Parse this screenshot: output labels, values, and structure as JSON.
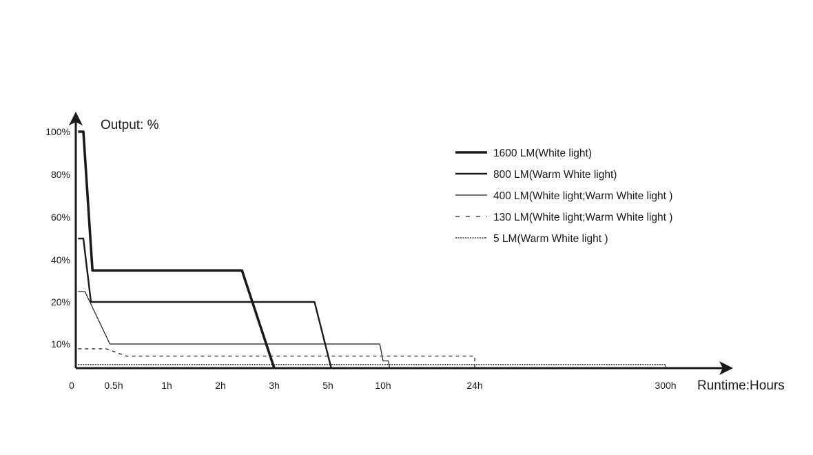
{
  "chart_data": {
    "type": "line",
    "ylabel": "Output: %",
    "xlabel": "Runtime:Hours",
    "x_ticks": [
      "0",
      "0.5h",
      "1h",
      "2h",
      "3h",
      "5h",
      "10h",
      "24h",
      "300h"
    ],
    "y_ticks": [
      "100%",
      "80%",
      "60%",
      "40%",
      "20%",
      "10%"
    ],
    "scale_note": "non-linear categorical axes",
    "series": [
      {
        "name": "1600 LM(White light)",
        "style": "heavy",
        "points": [
          [
            0.03,
            100
          ],
          [
            0.1,
            100
          ],
          [
            0.22,
            35
          ],
          [
            2.4,
            35
          ],
          [
            3,
            0
          ]
        ]
      },
      {
        "name": "800 LM(Warm White light)",
        "style": "medium",
        "points": [
          [
            0.03,
            50
          ],
          [
            0.1,
            50
          ],
          [
            0.2,
            20
          ],
          [
            4.5,
            20
          ],
          [
            5.3,
            0
          ]
        ]
      },
      {
        "name": "400 LM(White light;Warm White light )",
        "style": "thin",
        "points": [
          [
            0.03,
            25
          ],
          [
            0.12,
            25
          ],
          [
            0.45,
            10
          ],
          [
            9.7,
            10
          ],
          [
            10,
            3
          ],
          [
            10.8,
            3
          ],
          [
            11,
            0
          ]
        ]
      },
      {
        "name": "130 LM(White light;Warm White light )",
        "style": "dashed",
        "points": [
          [
            0.03,
            8
          ],
          [
            0.4,
            8
          ],
          [
            0.62,
            5
          ],
          [
            24,
            5
          ],
          [
            24,
            0
          ]
        ]
      },
      {
        "name": "5 LM(Warm White light )",
        "style": "dotted",
        "points": [
          [
            0.03,
            1.5
          ],
          [
            300,
            1.5
          ],
          [
            300,
            0
          ]
        ]
      }
    ]
  }
}
